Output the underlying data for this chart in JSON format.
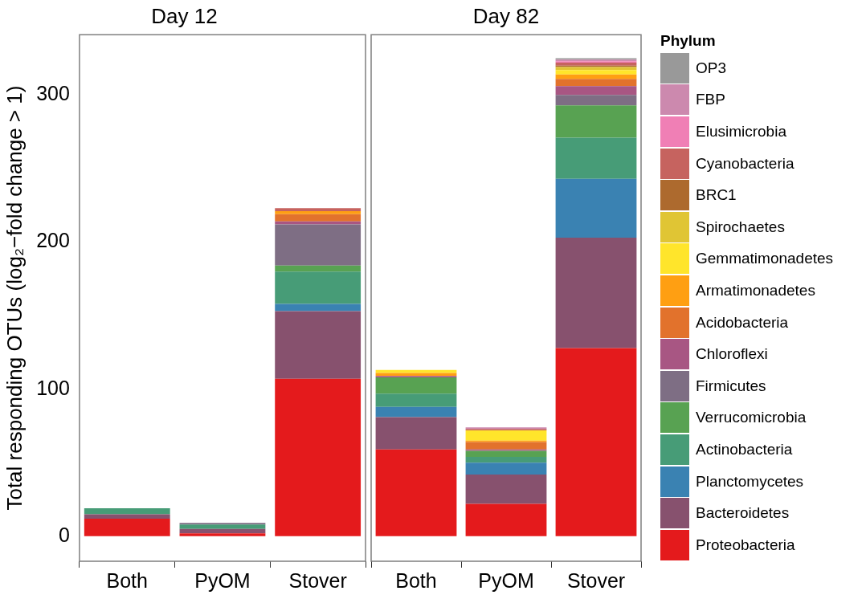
{
  "chart_data": [
    {
      "type": "bar",
      "title": "Day 12",
      "ylabel": "Total responding OTUs (log₂−fold change > 1)",
      "categories": [
        "Both",
        "PyOM",
        "Stover"
      ],
      "stacked": true,
      "ylim": [
        -17,
        341
      ],
      "yticks": [
        0,
        100,
        200,
        300
      ],
      "grid": false,
      "legend": false,
      "series": [
        {
          "color": "#e41a1c",
          "values": [
            12,
            2,
            107
          ]
        },
        {
          "color": "#87516e",
          "values": [
            3,
            3,
            46
          ]
        },
        {
          "color": "#3a82b2",
          "values": [
            0,
            0,
            5
          ]
        },
        {
          "color": "#479c77",
          "values": [
            4,
            3,
            22
          ]
        },
        {
          "color": "#58a252",
          "values": [
            0,
            0,
            4
          ]
        },
        {
          "color": "#7e6e84",
          "values": [
            0,
            1,
            28
          ]
        },
        {
          "color": "#a85683",
          "values": [
            0,
            0,
            2
          ]
        },
        {
          "color": "#e2722c",
          "values": [
            0,
            0,
            5
          ]
        },
        {
          "color": "#ff9f12",
          "values": [
            0,
            0,
            2
          ]
        },
        {
          "color": "#ffe52b",
          "values": [
            0,
            0,
            0
          ]
        },
        {
          "color": "#e0c534",
          "values": [
            0,
            0,
            0
          ]
        },
        {
          "color": "#ad6a2e",
          "values": [
            0,
            0,
            0
          ]
        },
        {
          "color": "#c6635f",
          "values": [
            0,
            0,
            2
          ]
        },
        {
          "color": "#f07fb5",
          "values": [
            0,
            0,
            0
          ]
        },
        {
          "color": "#cc89ae",
          "values": [
            0,
            0,
            0
          ]
        },
        {
          "color": "#999999",
          "values": [
            0,
            0,
            0
          ]
        }
      ]
    },
    {
      "type": "bar",
      "title": "Day 82",
      "categories": [
        "Both",
        "PyOM",
        "Stover"
      ],
      "stacked": true,
      "ylim": [
        -17,
        341
      ],
      "yticks": [
        0,
        100,
        200,
        300
      ],
      "grid": false,
      "tick_labels": "x",
      "legend": "right",
      "legend_title": "Phylum",
      "series": [
        {
          "name": "Proteobacteria",
          "color": "#e41a1c",
          "values": [
            59,
            22,
            128
          ]
        },
        {
          "name": "Bacteroidetes",
          "color": "#87516e",
          "values": [
            22,
            20,
            75
          ]
        },
        {
          "name": "Planctomycetes",
          "color": "#3a82b2",
          "values": [
            7,
            8,
            40
          ]
        },
        {
          "name": "Actinobacteria",
          "color": "#479c77",
          "values": [
            9,
            4,
            28
          ]
        },
        {
          "name": "Verrucomicrobia",
          "color": "#58a252",
          "values": [
            11,
            4,
            22
          ]
        },
        {
          "name": "Firmicutes",
          "color": "#7e6e84",
          "values": [
            0,
            0,
            7
          ]
        },
        {
          "name": "Chloroflexi",
          "color": "#a85683",
          "values": [
            1,
            1,
            6
          ]
        },
        {
          "name": "Acidobacteria",
          "color": "#e2722c",
          "values": [
            0,
            5,
            5
          ]
        },
        {
          "name": "Armatimonadetes",
          "color": "#ff9f12",
          "values": [
            2,
            1,
            3
          ]
        },
        {
          "name": "Gemmatimonadetes",
          "color": "#ffe52b",
          "values": [
            2,
            7,
            3
          ]
        },
        {
          "name": "Spirochaetes",
          "color": "#e0c534",
          "values": [
            0,
            0,
            2
          ]
        },
        {
          "name": "BRC1",
          "color": "#ad6a2e",
          "values": [
            0,
            0,
            1
          ]
        },
        {
          "name": "Cyanobacteria",
          "color": "#c6635f",
          "values": [
            0,
            1,
            2
          ]
        },
        {
          "name": "Elusimicrobia",
          "color": "#f07fb5",
          "values": [
            0,
            0,
            1
          ]
        },
        {
          "name": "FBP",
          "color": "#cc89ae",
          "values": [
            0,
            1,
            1
          ]
        },
        {
          "name": "OP3",
          "color": "#999999",
          "values": [
            0,
            0,
            1
          ]
        }
      ]
    }
  ]
}
